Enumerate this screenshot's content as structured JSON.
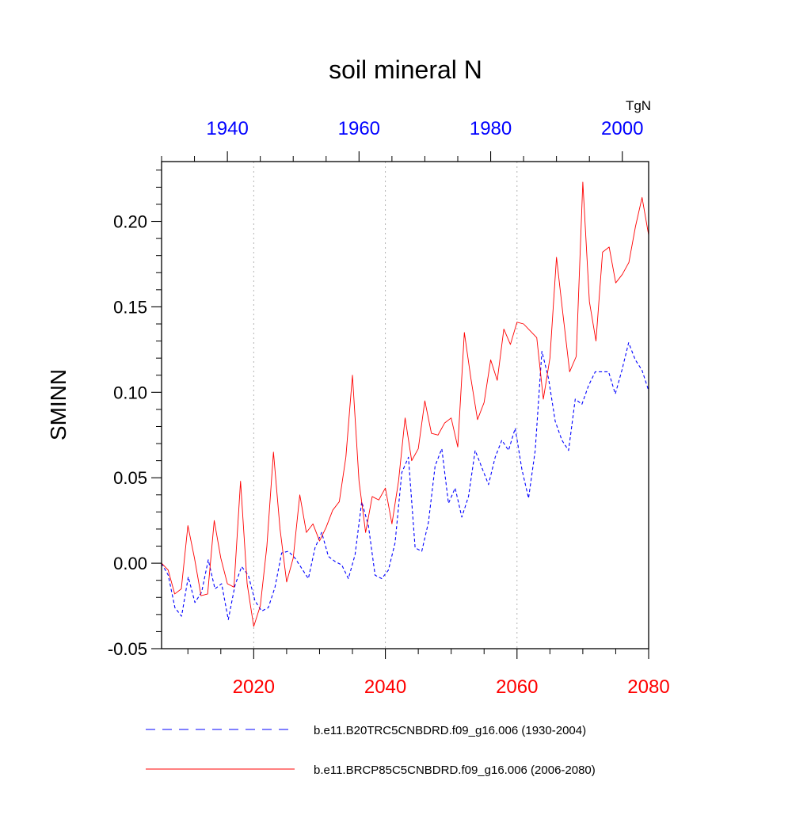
{
  "chart_data": {
    "type": "line",
    "title": "soil mineral N",
    "ylabel": "SMINN",
    "units": "TgN",
    "ylim": [
      -0.05,
      0.235
    ],
    "yticks": [
      -0.05,
      0.0,
      0.05,
      0.1,
      0.15,
      0.2
    ],
    "ytick_labels": [
      "-0.05",
      "0.00",
      "0.05",
      "0.10",
      "0.15",
      "0.20"
    ],
    "x_bottom": {
      "range": [
        2006,
        2080
      ],
      "ticks": [
        2020,
        2040,
        2060,
        2080
      ],
      "tick_labels": [
        "2020",
        "2040",
        "2060",
        "2080"
      ],
      "color": "#ff0000"
    },
    "x_top": {
      "range": [
        1930,
        2004
      ],
      "ticks": [
        1940,
        1960,
        1980,
        2000
      ],
      "tick_labels": [
        "1940",
        "1960",
        "1980",
        "2000"
      ],
      "color": "#0000ff"
    },
    "gridlines_x": [
      2020,
      2040,
      2060
    ],
    "series": [
      {
        "name": "b.e11.B20TRC5CNBDRD.f09_g16.006 (1930-2004)",
        "color": "#0000ff",
        "dash": "dashed",
        "values": [
          0.0,
          -0.007,
          -0.026,
          -0.031,
          -0.008,
          -0.023,
          -0.017,
          0.002,
          -0.015,
          -0.012,
          -0.033,
          -0.013,
          -0.002,
          -0.007,
          -0.022,
          -0.028,
          -0.026,
          -0.014,
          0.006,
          0.007,
          0.003,
          -0.003,
          -0.009,
          0.009,
          0.018,
          0.004,
          0.001,
          -0.001,
          -0.009,
          0.005,
          0.036,
          0.022,
          -0.007,
          -0.009,
          -0.004,
          0.012,
          0.053,
          0.062,
          0.009,
          0.007,
          0.024,
          0.057,
          0.067,
          0.035,
          0.044,
          0.027,
          0.039,
          0.066,
          0.056,
          0.046,
          0.062,
          0.072,
          0.066,
          0.079,
          0.055,
          0.038,
          0.066,
          0.124,
          0.108,
          0.083,
          0.072,
          0.066,
          0.096,
          0.093,
          0.104,
          0.112,
          0.112,
          0.112,
          0.099,
          0.113,
          0.129,
          0.119,
          0.113,
          0.101
        ]
      },
      {
        "name": "b.e11.BRCP85C5CNBDRD.f09_g16.006 (2006-2080)",
        "color": "#ff0000",
        "dash": "solid",
        "values": [
          0.0,
          -0.004,
          -0.018,
          -0.015,
          0.022,
          0.003,
          -0.019,
          -0.018,
          0.025,
          0.003,
          -0.012,
          -0.014,
          0.048,
          -0.012,
          -0.037,
          -0.025,
          0.01,
          0.065,
          0.02,
          -0.011,
          0.003,
          0.04,
          0.018,
          0.023,
          0.013,
          0.021,
          0.031,
          0.036,
          0.062,
          0.11,
          0.048,
          0.018,
          0.039,
          0.037,
          0.044,
          0.023,
          0.048,
          0.085,
          0.06,
          0.067,
          0.095,
          0.076,
          0.075,
          0.082,
          0.085,
          0.068,
          0.135,
          0.108,
          0.084,
          0.094,
          0.119,
          0.107,
          0.137,
          0.128,
          0.141,
          0.14,
          0.136,
          0.132,
          0.096,
          0.12,
          0.179,
          0.145,
          0.112,
          0.121,
          0.223,
          0.153,
          0.13,
          0.182,
          0.185,
          0.164,
          0.169,
          0.176,
          0.197,
          0.214,
          0.192
        ]
      }
    ]
  }
}
